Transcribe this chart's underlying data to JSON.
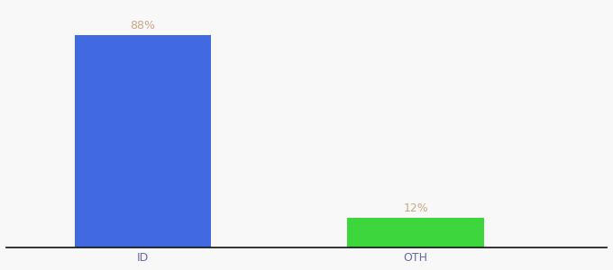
{
  "categories": [
    "ID",
    "OTH"
  ],
  "values": [
    88,
    12
  ],
  "bar_colors": [
    "#4169e1",
    "#3dd63d"
  ],
  "label_color": "#c8a882",
  "background_color": "#f8f8f8",
  "ylim": [
    0,
    100
  ],
  "label_fontsize": 9,
  "tick_fontsize": 9,
  "bar_width": 0.5,
  "x_positions": [
    1,
    2
  ],
  "xlim": [
    0.5,
    2.7
  ]
}
